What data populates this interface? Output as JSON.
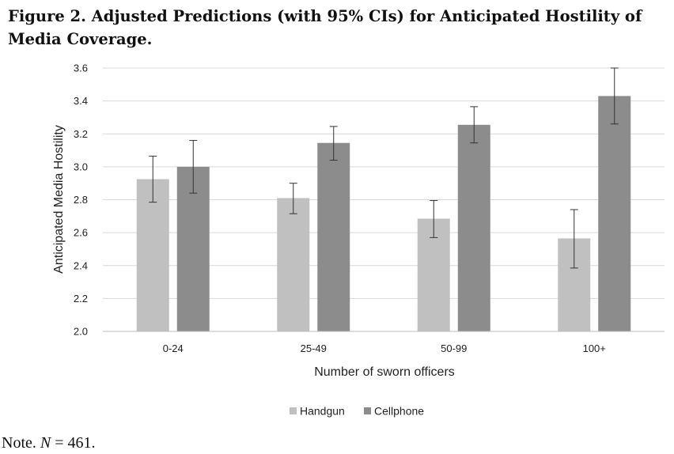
{
  "figure": {
    "title": "Figure 2. Adjusted Predictions (with 95% CIs) for Anticipated Hostility of Media Coverage.",
    "note_prefix": "Note. ",
    "note_n": "N",
    "note_suffix": " = 461."
  },
  "chart_data": {
    "type": "bar",
    "title": "",
    "xlabel": "Number of sworn officers",
    "ylabel": "Anticipated Media Hostility",
    "categories": [
      "0-24",
      "25-49",
      "50-99",
      "100+"
    ],
    "ylim": [
      2.0,
      3.6
    ],
    "yticks": [
      2.0,
      2.2,
      2.4,
      2.6,
      2.8,
      3.0,
      3.2,
      3.4,
      3.6
    ],
    "ytick_labels": [
      "2.0",
      "2.2",
      "2.4",
      "2.6",
      "2.8",
      "3.0",
      "3.2",
      "3.4",
      "3.6"
    ],
    "grid": true,
    "legend_position": "bottom",
    "series": [
      {
        "name": "Handgun",
        "color": "#c0c0c0",
        "values": [
          2.925,
          2.81,
          2.685,
          2.565
        ],
        "ci_low": [
          2.785,
          2.715,
          2.57,
          2.385
        ],
        "ci_high": [
          3.065,
          2.9,
          2.795,
          2.74
        ]
      },
      {
        "name": "Cellphone",
        "color": "#8c8c8c",
        "values": [
          3.0,
          3.145,
          3.255,
          3.43
        ],
        "ci_low": [
          2.84,
          3.04,
          3.145,
          3.26
        ],
        "ci_high": [
          3.16,
          3.245,
          3.365,
          3.6
        ]
      }
    ]
  }
}
